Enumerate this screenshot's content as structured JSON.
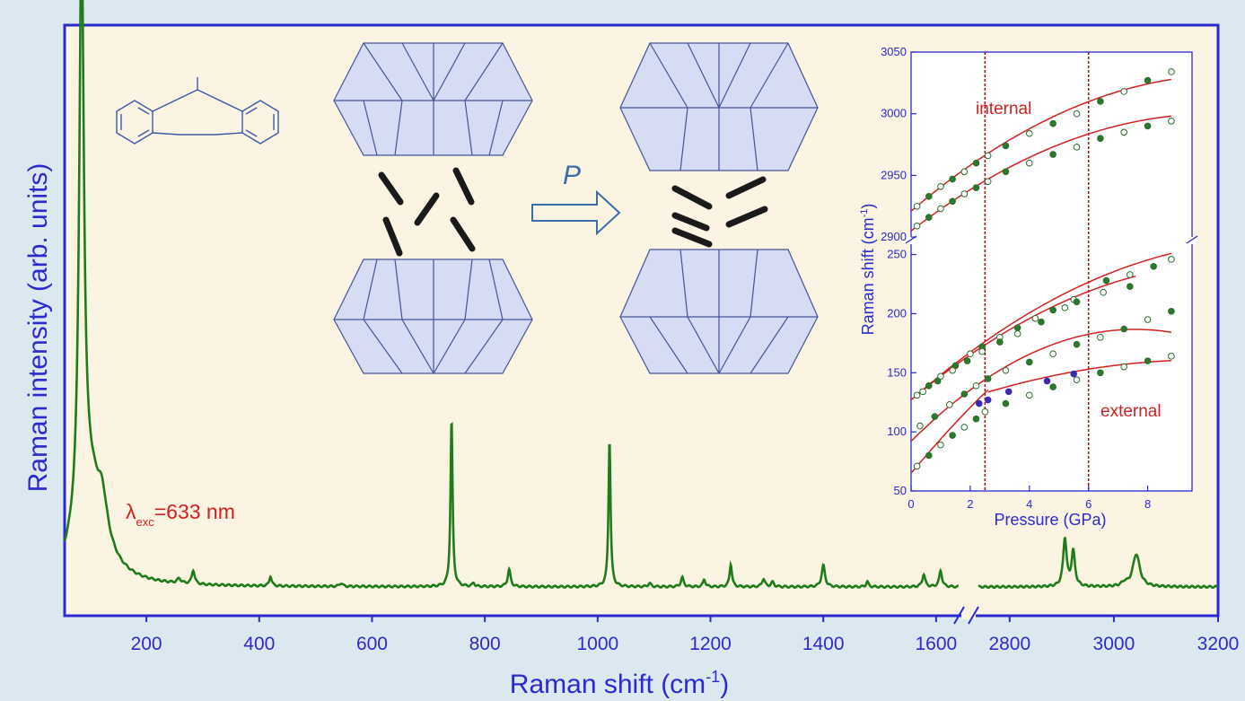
{
  "chart_data": [
    {
      "type": "line",
      "xlabel": "Raman shift (cm",
      "xlabel_sup": "-1",
      "xlabel_tail": ")",
      "ylabel": "Raman intensity (arb. units)",
      "x_axis_broken": true,
      "x_segments": [
        {
          "range": [
            55,
            1640
          ],
          "ticks": [
            200,
            400,
            600,
            800,
            1000,
            1200,
            1400,
            1600
          ]
        },
        {
          "range": [
            2740,
            3200
          ],
          "ticks": [
            2800,
            3000,
            3200
          ]
        }
      ],
      "y_ticks_shown": false,
      "annotation": {
        "symbol": "λ",
        "sub": "exc",
        "value": "=633 nm"
      },
      "series": [
        {
          "color": "#1e7d1a",
          "baseline": 0.05,
          "peaks": [
            {
              "x": 85,
              "height": 1.0,
              "width": 5
            },
            {
              "x": 100,
              "height": 0.17,
              "width": 30
            },
            {
              "x": 122,
              "height": 0.06,
              "width": 10
            },
            {
              "x": 258,
              "height": 0.008,
              "width": 4
            },
            {
              "x": 283,
              "height": 0.024,
              "width": 3
            },
            {
              "x": 420,
              "height": 0.017,
              "width": 2.5
            },
            {
              "x": 545,
              "height": 0.006,
              "width": 3
            },
            {
              "x": 741,
              "height": 0.29,
              "width": 2.2
            },
            {
              "x": 780,
              "height": 0.006,
              "width": 2.5
            },
            {
              "x": 843,
              "height": 0.03,
              "width": 3
            },
            {
              "x": 1021,
              "height": 0.255,
              "width": 2.2
            },
            {
              "x": 1092,
              "height": 0.006,
              "width": 3
            },
            {
              "x": 1150,
              "height": 0.016,
              "width": 3
            },
            {
              "x": 1189,
              "height": 0.013,
              "width": 2.5
            },
            {
              "x": 1236,
              "height": 0.04,
              "width": 2.5
            },
            {
              "x": 1294,
              "height": 0.014,
              "width": 3
            },
            {
              "x": 1310,
              "height": 0.008,
              "width": 3
            },
            {
              "x": 1400,
              "height": 0.037,
              "width": 3.5
            },
            {
              "x": 1478,
              "height": 0.009,
              "width": 2.5
            },
            {
              "x": 1578,
              "height": 0.022,
              "width": 3
            },
            {
              "x": 1608,
              "height": 0.028,
              "width": 3
            },
            {
              "x": 2906,
              "height": 0.083,
              "width": 4
            },
            {
              "x": 2922,
              "height": 0.06,
              "width": 4
            },
            {
              "x": 3020,
              "height": 0.006,
              "width": 6
            },
            {
              "x": 3043,
              "height": 0.057,
              "width": 8
            }
          ]
        }
      ]
    },
    {
      "type": "scatter",
      "xlabel": "Pressure (GPa)",
      "ylabel": "Raman shift (cm",
      "ylabel_sup": "-1",
      "ylabel_tail": ")",
      "xlim": [
        0,
        9.5
      ],
      "x_ticks": [
        0,
        2,
        4,
        6,
        8
      ],
      "y_axis_broken": true,
      "y_segments": [
        {
          "range": [
            50,
            255
          ],
          "ticks": [
            50,
            100,
            150,
            200,
            250
          ]
        },
        {
          "range": [
            2895,
            3050
          ],
          "ticks": [
            2900,
            2950,
            3000,
            3050
          ]
        }
      ],
      "reference_lines_x": [
        2.5,
        6.0
      ],
      "labels": {
        "internal": "internal",
        "external": "external"
      },
      "fit_curves": [
        {
          "segment": 1,
          "coef": [
            2921,
            20.5,
            -0.95
          ],
          "x": [
            0,
            8.8
          ]
        },
        {
          "segment": 1,
          "coef": [
            2905,
            18.5,
            -0.9
          ],
          "x": [
            0,
            8.8
          ]
        },
        {
          "segment": 0,
          "coef": [
            127,
            22,
            -0.9
          ],
          "x": [
            0,
            8.8
          ]
        },
        {
          "segment": 0,
          "coef": [
            127,
            21,
            -0.95
          ],
          "x": [
            0,
            7.6
          ]
        },
        {
          "segment": 0,
          "coef": [
            92,
            25,
            -1.65
          ],
          "x": [
            0,
            8.8
          ]
        },
        {
          "segment": 0,
          "coef": [
            65,
            30,
            -1.1
          ],
          "x": [
            0,
            2.6
          ]
        },
        {
          "segment": 0,
          "coef": [
            111,
            10,
            -0.5
          ],
          "x": [
            2.6,
            8.8
          ]
        }
      ],
      "series": [
        {
          "name": "",
          "segment": 1,
          "x": [
            0.2,
            0.6,
            1.0,
            1.4,
            1.8,
            2.2,
            2.6,
            3.2,
            4.0,
            4.8,
            5.6,
            6.4,
            7.2,
            8.0,
            8.8
          ],
          "y": [
            2925,
            2933,
            2941,
            2947,
            2953,
            2960,
            2966,
            2974,
            2984,
            2992,
            3000,
            3010,
            3018,
            3027,
            3034
          ]
        },
        {
          "name": "",
          "segment": 1,
          "x": [
            0.2,
            0.6,
            1.0,
            1.4,
            1.8,
            2.2,
            2.6,
            3.2,
            4.0,
            4.8,
            5.6,
            6.4,
            7.2,
            8.0,
            8.8
          ],
          "y": [
            2909,
            2916,
            2923,
            2929,
            2935,
            2940,
            2945,
            2953,
            2960,
            2967,
            2973,
            2980,
            2985,
            2990,
            2994
          ]
        },
        {
          "name": "",
          "segment": 0,
          "x": [
            0.2,
            0.6,
            1.0,
            1.5,
            2.0,
            2.4,
            3.0,
            3.6,
            4.2,
            4.8,
            5.5,
            6.6,
            7.4,
            8.2,
            8.8
          ],
          "y": [
            131,
            139,
            147,
            156,
            166,
            172,
            180,
            188,
            196,
            203,
            212,
            228,
            233,
            240,
            246
          ]
        },
        {
          "name": "",
          "segment": 0,
          "x": [
            0.4,
            0.9,
            1.4,
            1.9,
            2.4,
            3.0,
            3.6,
            4.4,
            5.2,
            5.6,
            6.5,
            7.4
          ],
          "y": [
            134,
            143,
            152,
            160,
            168,
            176,
            183,
            193,
            205,
            210,
            218,
            223
          ]
        },
        {
          "name": "",
          "segment": 0,
          "x": [
            0.3,
            0.8,
            1.3,
            1.8,
            2.2,
            2.6,
            3.2,
            4.0,
            4.8,
            5.6,
            6.4,
            7.2,
            8.0,
            8.8
          ],
          "y": [
            105,
            113,
            123,
            132,
            139,
            145,
            152,
            159,
            166,
            174,
            180,
            187,
            195,
            202
          ]
        },
        {
          "name": "",
          "segment": 0,
          "x": [
            0.2,
            0.6,
            1.0,
            1.4,
            1.8,
            2.2,
            2.5,
            3.2,
            4.0,
            4.8,
            5.6,
            6.4,
            7.2,
            8.0,
            8.8
          ],
          "y": [
            71,
            80,
            89,
            97,
            104,
            111,
            117,
            124,
            131,
            138,
            144,
            150,
            155,
            160,
            164
          ]
        },
        {
          "name": "",
          "segment": 0,
          "color": "#3a2ab0",
          "x": [
            2.3,
            2.6,
            3.3,
            4.6,
            5.5
          ],
          "y": [
            124,
            127,
            134,
            143,
            149
          ]
        }
      ]
    }
  ],
  "diagram": {
    "pressure_label": "P"
  }
}
